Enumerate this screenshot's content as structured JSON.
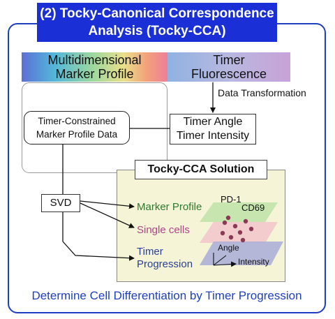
{
  "title": {
    "line1": "(2) Tocky-Canonical Correspondence",
    "line2": "Analysis (Tocky-CCA)"
  },
  "inputs": {
    "marker_profile": {
      "line1": "Multidimensional",
      "line2": "Marker Profile"
    },
    "timer_fluorescence": {
      "line1": "Timer",
      "line2": "Fluorescence"
    }
  },
  "data_transformation": "Data Transformation",
  "timer_angle_box": {
    "line1": "Timer Angle",
    "line2": "Timer Intensity"
  },
  "constrained_box": {
    "line1": "Timer-Constrained",
    "line2": "Marker Profile Data"
  },
  "svd": "SVD",
  "solution": {
    "title": "Tocky-CCA Solution",
    "marker_profile": "Marker Profile",
    "single_cells": "Single cells",
    "timer_progression": {
      "line1": "Timer",
      "line2": "Progression"
    },
    "pd1": "PD-1",
    "cd69": "CD69",
    "angle": "Angle",
    "intensity": "Intensity"
  },
  "footer": "Determine Cell Differentiation by Timer Progression",
  "colors": {
    "frame_blue": "#1f3fbf",
    "banner_blue": "#1a2fd6",
    "green_layer": "#b7e0a0",
    "pink_layer": "#f2bfcb",
    "blue_layer": "#a9acd8",
    "cell_dot": "#8a3a55"
  }
}
